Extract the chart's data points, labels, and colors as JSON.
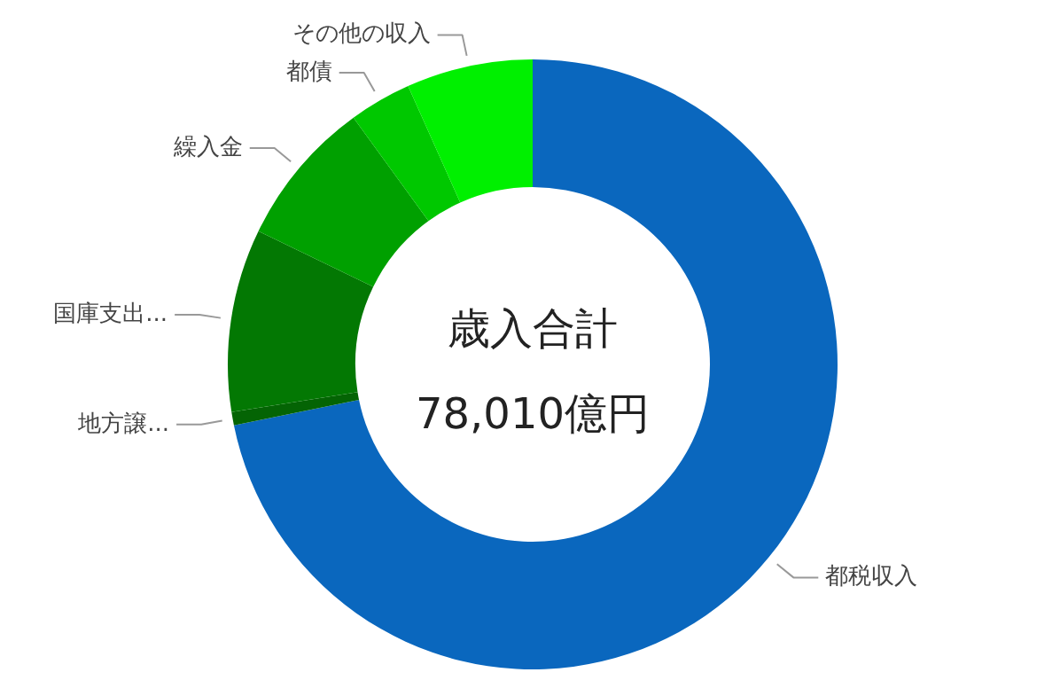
{
  "chart_data": {
    "type": "donut",
    "title": "歳入合計",
    "annotations": [
      "78,010億円"
    ],
    "categories": [
      "都税収入",
      "地方譲...",
      "国庫支出...",
      "繰入金",
      "都債",
      "その他の収入"
    ],
    "values": [
      71.8,
      0.7,
      9.7,
      7.8,
      3.3,
      6.7
    ],
    "colors": [
      "#0a67be",
      "#046404",
      "#037803",
      "#00a000",
      "#00c800",
      "#00f000"
    ]
  }
}
